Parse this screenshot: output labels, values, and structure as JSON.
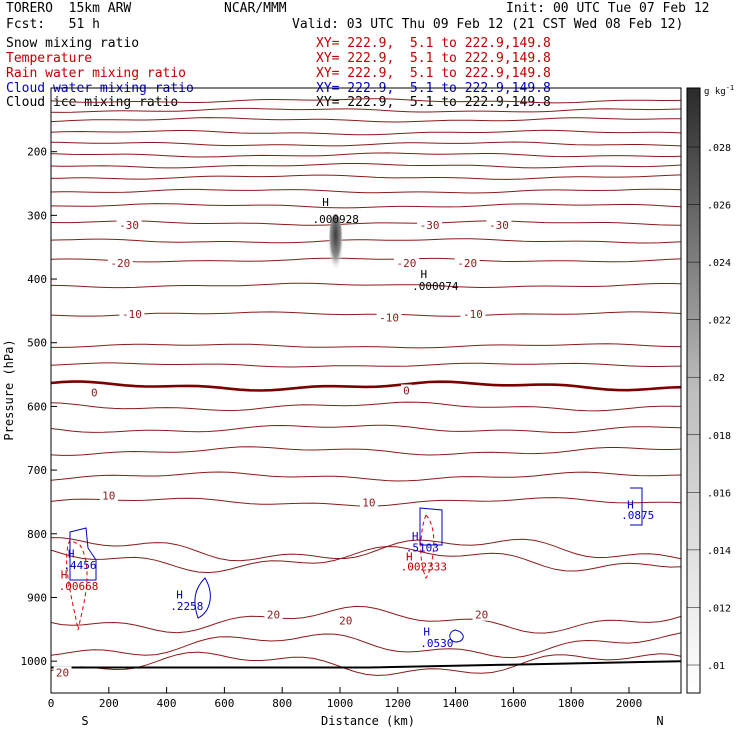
{
  "header": {
    "model": "TORERO  15km ARW",
    "org": "NCAR/MMM",
    "init": "Init: 00 UTC Tue 07 Feb 12",
    "fcst": "Fcst:   51 h",
    "valid": "Valid: 03 UTC Thu 09 Feb 12 (21 CST Wed 08 Feb 12)",
    "fields": [
      {
        "name": "Snow mixing ratio",
        "xy": "XY= 222.9,  5.1 to 222.9,149.8",
        "color": "#000000"
      },
      {
        "name": "Temperature",
        "xy": "XY= 222.9,  5.1 to 222.9,149.8",
        "color": "#c00000"
      },
      {
        "name": "Rain water mixing ratio",
        "xy": "XY= 222.9,  5.1 to 222.9,149.8",
        "color": "#c00000"
      },
      {
        "name": "Cloud water mixing ratio",
        "xy": "XY= 222.9,  5.1 to 222.9,149.8",
        "color": "#0000c0"
      },
      {
        "name": "Cloud ice mixing ratio",
        "xy": "XY= 222.9,  5.1 to 222.9,149.8",
        "color": "#000000"
      }
    ]
  },
  "chart_data": {
    "type": "cross-section",
    "xlabel": "Distance (km)",
    "ylabel": "Pressure (hPa)",
    "xlim": [
      0,
      2180
    ],
    "ylim": [
      1050,
      100
    ],
    "x_ticks": [
      0,
      200,
      400,
      600,
      800,
      1000,
      1200,
      1400,
      1600,
      1800,
      2000
    ],
    "y_ticks": [
      200,
      300,
      400,
      500,
      600,
      700,
      800,
      900,
      1000
    ],
    "left_end_label": "S",
    "right_end_label": "N",
    "colorbar": {
      "unit": "g kg",
      "unit_exp": "-1",
      "ticks": [
        ".01",
        ".012",
        ".014",
        ".016",
        ".018",
        ".02",
        ".022",
        ".024",
        ".026",
        ".028"
      ]
    },
    "temperature_contour_labels": [
      {
        "text": "-30",
        "x": 270,
        "p": 315
      },
      {
        "text": "-30",
        "x": 1310,
        "p": 315
      },
      {
        "text": "-30",
        "x": 1550,
        "p": 315
      },
      {
        "text": "-20",
        "x": 240,
        "p": 375
      },
      {
        "text": "-20",
        "x": 1230,
        "p": 375
      },
      {
        "text": "-20",
        "x": 1440,
        "p": 375
      },
      {
        "text": "-10",
        "x": 280,
        "p": 455
      },
      {
        "text": "-10",
        "x": 1170,
        "p": 460
      },
      {
        "text": "-10",
        "x": 1460,
        "p": 455
      },
      {
        "text": "0",
        "x": 150,
        "p": 578
      },
      {
        "text": "0",
        "x": 1230,
        "p": 575
      },
      {
        "text": "10",
        "x": 200,
        "p": 740
      },
      {
        "text": "10",
        "x": 1100,
        "p": 751
      },
      {
        "text": "20",
        "x": 770,
        "p": 927
      },
      {
        "text": "20",
        "x": 1020,
        "p": 936
      },
      {
        "text": "20",
        "x": 1490,
        "p": 927
      },
      {
        "text": "20",
        "x": 40,
        "p": 1018
      }
    ],
    "temperature_hpa_lines": [
      120,
      135,
      150,
      170,
      188,
      205,
      222,
      240,
      262,
      285,
      312,
      340,
      370,
      410,
      455,
      505,
      535,
      568,
      600,
      635,
      670,
      710,
      750,
      825,
      840,
      935,
      975,
      1005
    ],
    "extrema_labels": [
      {
        "text": "H",
        "x": 950,
        "p": 285,
        "color": "#000000"
      },
      {
        "text": ".000928",
        "x": 985,
        "p": 312,
        "color": "#000000"
      },
      {
        "text": "H",
        "x": 1290,
        "p": 398,
        "color": "#000000"
      },
      {
        "text": ".000074",
        "x": 1330,
        "p": 417,
        "color": "#000000"
      },
      {
        "text": "H",
        "x": 70,
        "p": 837,
        "color": "#0000c0"
      },
      {
        "text": ".4456",
        "x": 100,
        "p": 855,
        "color": "#0000c0"
      },
      {
        "text": "H",
        "x": 45,
        "p": 870,
        "color": "#c00000"
      },
      {
        "text": ".00668",
        "x": 95,
        "p": 888,
        "color": "#c00000"
      },
      {
        "text": "H",
        "x": 445,
        "p": 902,
        "color": "#0000c0"
      },
      {
        "text": ".2258",
        "x": 470,
        "p": 920,
        "color": "#0000c0"
      },
      {
        "text": "H",
        "x": 1260,
        "p": 810,
        "color": "#0000c0"
      },
      {
        "text": ".5103",
        "x": 1285,
        "p": 828,
        "color": "#0000c0"
      },
      {
        "text": "H",
        "x": 1240,
        "p": 842,
        "color": "#c00000"
      },
      {
        "text": ".002333",
        "x": 1290,
        "p": 858,
        "color": "#c00000"
      },
      {
        "text": "H",
        "x": 1300,
        "p": 960,
        "color": "#0000c0"
      },
      {
        "text": ".0530",
        "x": 1335,
        "p": 978,
        "color": "#0000c0"
      },
      {
        "text": "H",
        "x": 2005,
        "p": 760,
        "color": "#0000c0"
      },
      {
        "text": ".0875",
        "x": 2030,
        "p": 777,
        "color": "#0000c0"
      }
    ]
  }
}
